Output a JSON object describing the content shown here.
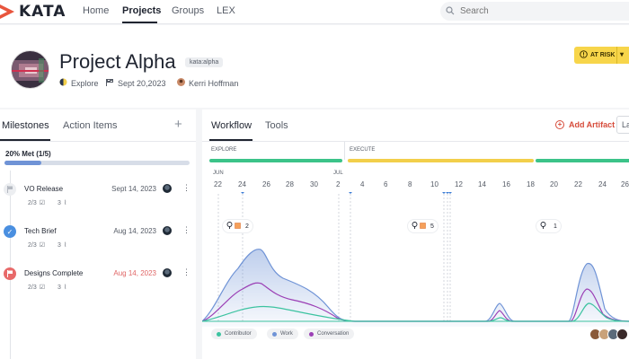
{
  "nav": {
    "logo": "KATA",
    "items": [
      {
        "label": "Home"
      },
      {
        "label": "Projects"
      },
      {
        "label": "Groups"
      },
      {
        "label": "LEX"
      }
    ],
    "search_placeholder": "Search"
  },
  "header": {
    "title": "Project Alpha",
    "tag": "kata:alpha",
    "phase": "Explore",
    "date": "Sept 20,2023",
    "owner": "Kerri Hoffman",
    "status_button": "AT RISK"
  },
  "left": {
    "tabs": [
      "Milestones",
      "Action Items"
    ],
    "met": "20% Met (1/5)",
    "progress_fraction": 0.2,
    "milestones": [
      {
        "name": "VO Release",
        "date": "Sept 14, 2023",
        "tasks": "2/3",
        "attachments": "3",
        "status": "pending",
        "overdue": false
      },
      {
        "name": "Tech Brief",
        "date": "Aug 14, 2023",
        "tasks": "2/3",
        "attachments": "3",
        "status": "done",
        "overdue": false
      },
      {
        "name": "Designs Complete",
        "date": "Aug 14, 2023",
        "tasks": "2/3",
        "attachments": "3",
        "status": "late",
        "overdue": true
      }
    ]
  },
  "workflow": {
    "tabs": [
      "Workflow",
      "Tools"
    ],
    "add_artifact": "Add Artifact",
    "layout_button": "La",
    "phases": [
      {
        "label": "EXPLORE",
        "color": "#3cc389"
      },
      {
        "label": "EXECUTE",
        "color": "#f2cf4a"
      }
    ],
    "months": [
      "JUN",
      "JUL"
    ],
    "days": [
      "22",
      "24",
      "26",
      "28",
      "30",
      "2",
      "4",
      "6",
      "8",
      "10",
      "12",
      "14",
      "16",
      "18",
      "20",
      "22",
      "24",
      "26"
    ],
    "flags": [
      {
        "count": "2"
      },
      {
        "count": "5"
      },
      {
        "count": "1"
      }
    ],
    "legend": [
      {
        "label": "Contributor",
        "color": "#3cc3a0"
      },
      {
        "label": "Work",
        "color": "#6f93d6"
      },
      {
        "label": "Conversation",
        "color": "#9b3fb5"
      }
    ]
  }
}
